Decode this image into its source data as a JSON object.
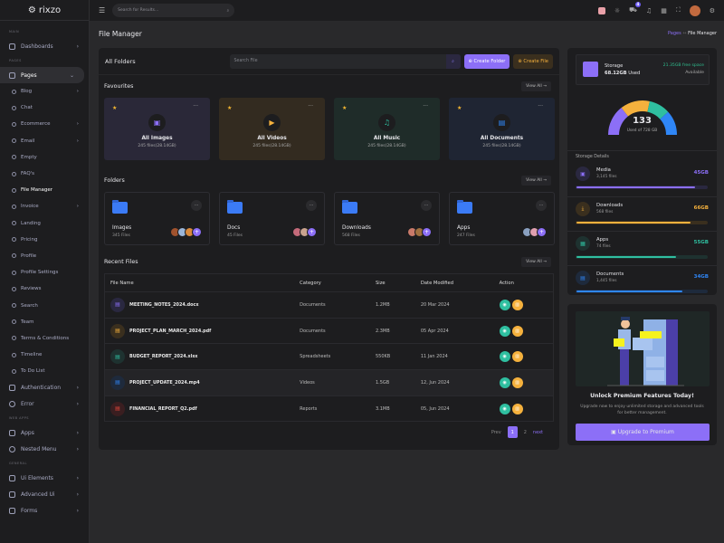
{
  "brand": "rixzo",
  "sidebar": {
    "sections": {
      "main": "MAIN",
      "pages": "PAGES",
      "webapps": "WEB APPS",
      "general": "GENERAL"
    },
    "dashboards": "Dashboards",
    "pages": "Pages",
    "subitems": [
      "Blog",
      "Chat",
      "Ecommerce",
      "Email",
      "Empty",
      "FAQ's",
      "File Manager",
      "Invoice",
      "Landing",
      "Pricing",
      "Profile",
      "Profile Settings",
      "Reviews",
      "Search",
      "Team",
      "Terms & Conditions",
      "Timeline",
      "To Do List"
    ],
    "authentication": "Authentication",
    "error": "Error",
    "apps": "Apps",
    "nested": "Nested Menu",
    "ui": "Ui Elements",
    "advanced": "Advanced Ui",
    "forms": "Forms"
  },
  "topbar": {
    "search_placeholder": "Search for Results...",
    "cart_badge": "4"
  },
  "page": {
    "title": "File Manager",
    "breadcrumb": [
      "Pages",
      "File Manager"
    ]
  },
  "main": {
    "title": "All Folders",
    "search_placeholder": "Search File",
    "create_folder": "Create Folder",
    "create_file": "Create File",
    "view_all": "View All",
    "favourites_title": "Favourites",
    "favourites": [
      {
        "name": "All Images",
        "info": "245 files(28.14GB)"
      },
      {
        "name": "All Videos",
        "info": "245 files(28.14GB)"
      },
      {
        "name": "All Music",
        "info": "245 files(28.14GB)"
      },
      {
        "name": "All Documents",
        "info": "245 files(28.14GB)"
      }
    ],
    "folders_title": "Folders",
    "folders": [
      {
        "name": "Images",
        "count": "345 Files"
      },
      {
        "name": "Docs",
        "count": "45 Files"
      },
      {
        "name": "Downloads",
        "count": "568 Files"
      },
      {
        "name": "Apps",
        "count": "247 Files"
      }
    ],
    "recent_title": "Recent Files",
    "columns": [
      "File Name",
      "Category",
      "Size",
      "Date Modified",
      "Action"
    ],
    "rows": [
      {
        "name": "MEETING_NOTES_2024.docx",
        "category": "Documents",
        "size": "1.2MB",
        "date": "20 Mar 2024"
      },
      {
        "name": "PROJECT_PLAN_MARCH_2024.pdf",
        "category": "Documents",
        "size": "2.3MB",
        "date": "05 Apr 2024"
      },
      {
        "name": "BUDGET_REPORT_2024.xlsx",
        "category": "Spreadsheets",
        "size": "550KB",
        "date": "11 Jan 2024"
      },
      {
        "name": "PROJECT_UPDATE_2024.mp4",
        "category": "Videos",
        "size": "1.5GB",
        "date": "12, Jun 2024"
      },
      {
        "name": "FINANCIAL_REPORT_Q2.pdf",
        "category": "Reports",
        "size": "3.1MB",
        "date": "05, Jun 2024"
      }
    ],
    "pagination": {
      "prev": "Prev",
      "pages": [
        "1",
        "2"
      ],
      "next": "next",
      "current": "1"
    }
  },
  "storage": {
    "label": "Storage",
    "used": "68.12GB",
    "used_suffix": "Used",
    "free": "21.35GB free space",
    "available": "Available",
    "gauge_value": "133",
    "gauge_caption": "Used of 728 GB",
    "details_title": "Storage Details",
    "items": [
      {
        "name": "Media",
        "files": "3,145 files",
        "size": "45GB",
        "percent": 90,
        "color": "#8c6ff7"
      },
      {
        "name": "Downloads",
        "files": "568 files",
        "size": "66GB",
        "percent": 86,
        "color": "#f5b13d"
      },
      {
        "name": "Apps",
        "files": "74 files",
        "size": "55GB",
        "percent": 75,
        "color": "#2fbfa0"
      },
      {
        "name": "Documents",
        "files": "1,445 files",
        "size": "34GB",
        "percent": 80,
        "color": "#2f86f6"
      }
    ]
  },
  "premium": {
    "title": "Unlock Premium Features Today!",
    "text": "Upgrade now to enjoy unlimited storage and advanced tools for better management.",
    "button": "Upgrade to Premium"
  }
}
